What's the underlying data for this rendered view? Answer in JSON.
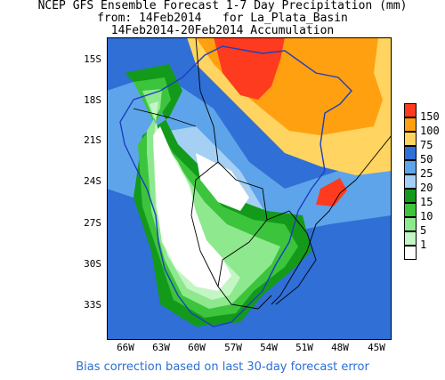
{
  "title": {
    "line1": "NCEP GFS Ensemble Forecast 1-7 Day Precipitation (mm)",
    "line2": "from: 14Feb2014   for La_Plata_Basin",
    "line3": "14Feb2014-20Feb2014 Accumulation"
  },
  "axes": {
    "lat_ticks": [
      "15S",
      "18S",
      "21S",
      "24S",
      "27S",
      "30S",
      "33S"
    ],
    "lon_ticks": [
      "66W",
      "63W",
      "60W",
      "57W",
      "54W",
      "51W",
      "48W",
      "45W"
    ]
  },
  "legend": [
    {
      "label": "150",
      "color": "#ff3b1f"
    },
    {
      "label": "100",
      "color": "#ffa010"
    },
    {
      "label": "75",
      "color": "#ffd460"
    },
    {
      "label": "50",
      "color": "#2f6fd6"
    },
    {
      "label": "25",
      "color": "#5ea4ea"
    },
    {
      "label": "20",
      "color": "#a5d0f4"
    },
    {
      "label": "15",
      "color": "#139a1b"
    },
    {
      "label": "10",
      "color": "#3cc43c"
    },
    {
      "label": "5",
      "color": "#8ee88e"
    },
    {
      "label": "1",
      "color": "#c4f5c4"
    },
    {
      "label": "",
      "color": "#ffffff"
    }
  ],
  "footer": "Bias correction based on last 30-day forecast error"
}
